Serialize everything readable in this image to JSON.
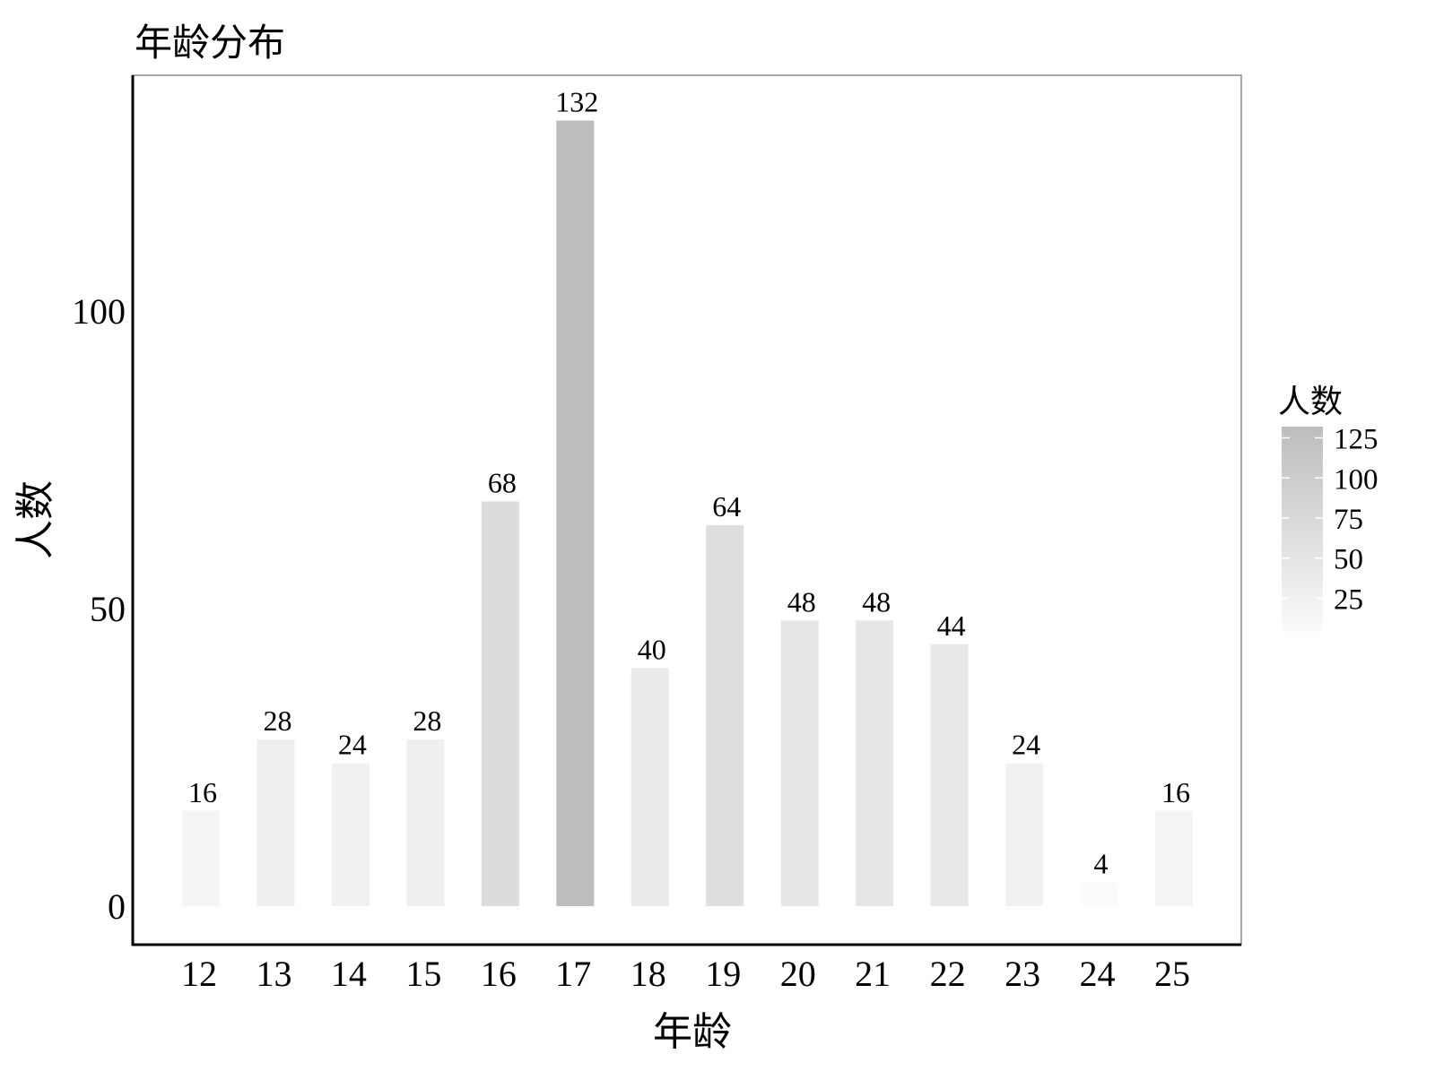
{
  "chart_data": {
    "type": "bar",
    "title": "年龄分布",
    "xlabel": "年龄",
    "ylabel": "人数",
    "categories": [
      "12",
      "13",
      "14",
      "15",
      "16",
      "17",
      "18",
      "19",
      "20",
      "21",
      "22",
      "23",
      "24",
      "25"
    ],
    "values": [
      16,
      28,
      24,
      28,
      68,
      132,
      40,
      64,
      48,
      48,
      44,
      24,
      4,
      16
    ],
    "yticks": [
      0,
      50,
      100
    ],
    "ylim": [
      -6.5,
      139
    ],
    "grid": false,
    "data_labels": true,
    "legend": {
      "title": "人数",
      "placement": "right",
      "type": "colorbar",
      "ticks": [
        25,
        50,
        75,
        100,
        125
      ],
      "range": [
        4,
        132
      ],
      "low_color": "#fbfbfb",
      "high_color": "#bdbdbd"
    }
  }
}
